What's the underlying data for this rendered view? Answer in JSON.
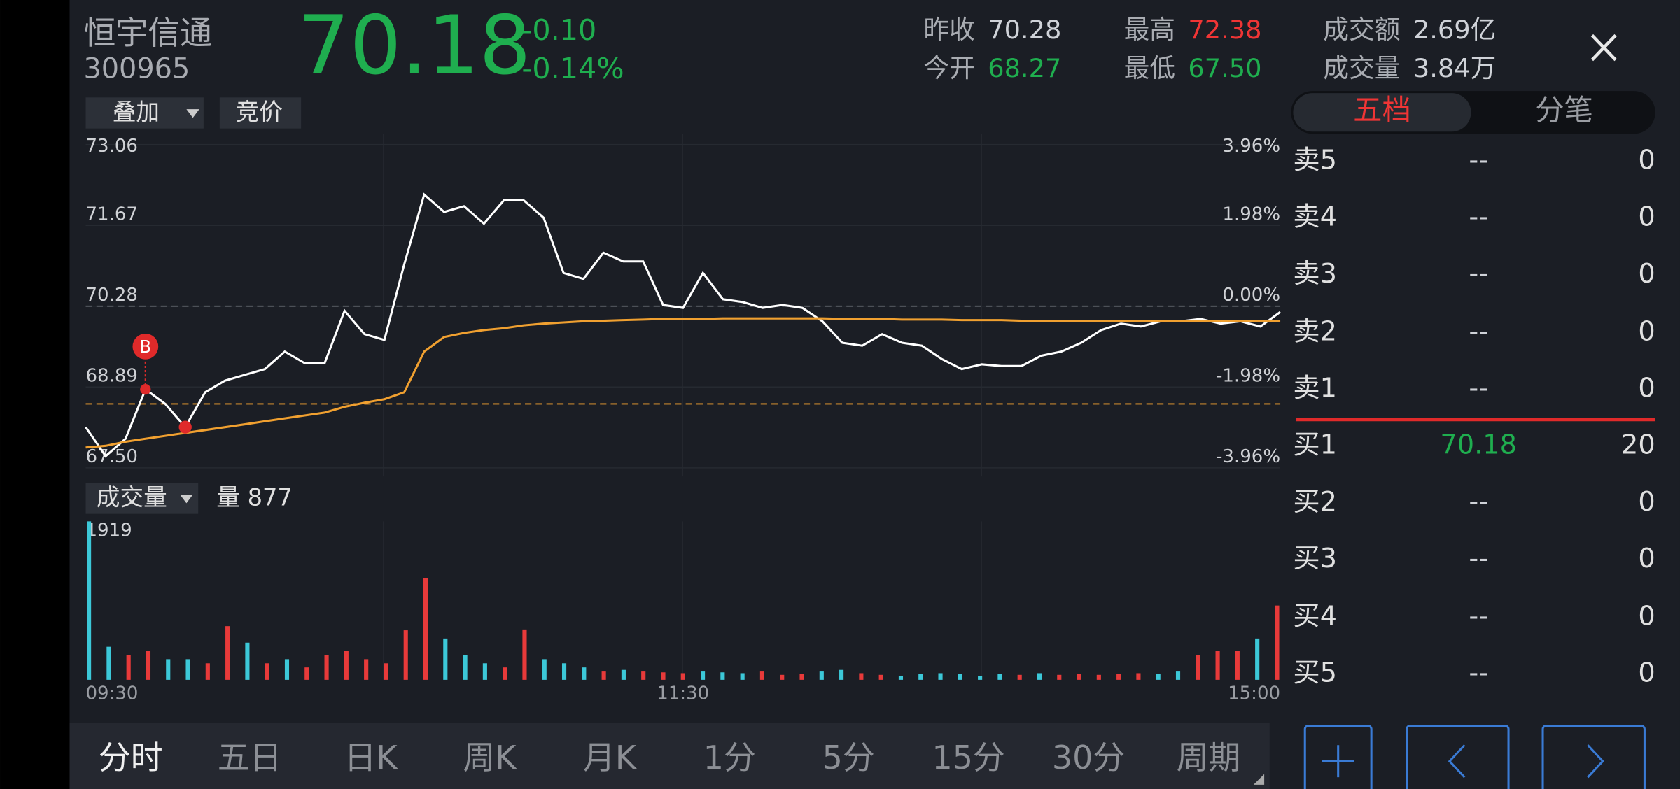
{
  "header": {
    "name": "恒宇信通",
    "code": "300965",
    "price": "70.18",
    "change": "-0.10",
    "change_pct": "-0.14%",
    "stats": [
      {
        "label": "昨收",
        "value": "70.28",
        "color": "#cfd2d8"
      },
      {
        "label": "今开",
        "value": "68.27",
        "color": "#1fae4f"
      },
      {
        "label": "最高",
        "value": "72.38",
        "color": "#f03535"
      },
      {
        "label": "最低",
        "value": "67.50",
        "color": "#1fae4f"
      },
      {
        "label": "成交额",
        "value": "2.69亿",
        "color": "#cfd2d8"
      },
      {
        "label": "成交量",
        "value": "3.84万",
        "color": "#cfd2d8"
      }
    ]
  },
  "toolbar": [
    "叠加",
    "竞价"
  ],
  "chart_data": [
    {
      "type": "line",
      "ylim": [
        67.5,
        73.06
      ],
      "yticks": [
        73.06,
        71.67,
        70.28,
        68.89,
        {
          "value": 67.5,
          "label": "67.50"
        }
      ],
      "y2lim": [
        -3.96,
        3.96
      ],
      "y2ticks": [
        {
          "value": 3.96,
          "label": "3.96%"
        },
        {
          "value": 1.98,
          "label": "1.98%"
        },
        {
          "value": 0,
          "label": "0.00%"
        },
        {
          "value": -1.98,
          "label": "-1.98%"
        },
        {
          "value": -3.96,
          "label": "-3.96%"
        }
      ],
      "ref_lines": [
        {
          "value": 70.28,
          "color": "#6a6e76"
        },
        {
          "value": 68.6,
          "color": "#f0a030"
        }
      ],
      "markers": [
        {
          "label": "B",
          "point": 3
        },
        {
          "point": 5
        }
      ],
      "series": [
        {
          "color": "#ffffff",
          "values": [
            68.2,
            67.7,
            68.0,
            68.85,
            68.6,
            68.2,
            68.8,
            69.0,
            69.1,
            69.2,
            69.5,
            69.3,
            69.3,
            70.2,
            69.8,
            69.7,
            71.0,
            72.2,
            71.9,
            72.0,
            71.7,
            72.1,
            72.1,
            71.8,
            70.85,
            70.75,
            71.2,
            71.05,
            71.05,
            70.3,
            70.25,
            70.85,
            70.4,
            70.35,
            70.25,
            70.3,
            70.25,
            70.02,
            69.65,
            69.6,
            69.8,
            69.65,
            69.6,
            69.37,
            69.2,
            69.28,
            69.25,
            69.25,
            69.43,
            69.5,
            69.65,
            69.87,
            69.98,
            69.93,
            70.02,
            70.02,
            70.06,
            69.98,
            70.02,
            69.93,
            70.18
          ]
        },
        {
          "color": "#f0a030",
          "values": [
            67.85,
            67.88,
            67.95,
            68.0,
            68.05,
            68.1,
            68.15,
            68.2,
            68.25,
            68.3,
            68.35,
            68.4,
            68.45,
            68.55,
            68.62,
            68.68,
            68.8,
            69.5,
            69.75,
            69.82,
            69.87,
            69.9,
            69.95,
            69.98,
            70.0,
            70.02,
            70.03,
            70.04,
            70.05,
            70.06,
            70.06,
            70.06,
            70.07,
            70.07,
            70.07,
            70.07,
            70.07,
            70.07,
            70.06,
            70.06,
            70.06,
            70.05,
            70.05,
            70.05,
            70.04,
            70.04,
            70.04,
            70.03,
            70.03,
            70.03,
            70.03,
            70.03,
            70.03,
            70.02,
            70.02,
            70.02,
            70.02,
            70.02,
            70.02,
            70.02,
            70.02
          ]
        }
      ]
    },
    {
      "type": "bar",
      "title": "成交量",
      "volume_label": "量 877",
      "ylim": [
        0,
        1919
      ],
      "yticks": [
        1919
      ],
      "time_labels": [
        "09:30",
        "11:30",
        "15:00"
      ],
      "values": [
        1919,
        400,
        300,
        350,
        250,
        250,
        200,
        650,
        450,
        200,
        250,
        150,
        300,
        350,
        250,
        200,
        600,
        1230,
        500,
        300,
        200,
        150,
        610,
        250,
        200,
        150,
        100,
        120,
        100,
        90,
        80,
        100,
        90,
        80,
        100,
        60,
        70,
        100,
        120,
        80,
        60,
        50,
        70,
        80,
        70,
        50,
        70,
        60,
        80,
        60,
        70,
        60,
        70,
        80,
        70,
        100,
        300,
        350,
        350,
        500,
        900
      ],
      "colors": [
        "#3cc8d8",
        "#3cc8d8",
        "#e83a3a",
        "#e83a3a",
        "#3cc8d8",
        "#3cc8d8",
        "#e83a3a",
        "#e83a3a",
        "#3cc8d8",
        "#e83a3a",
        "#3cc8d8",
        "#e83a3a",
        "#e83a3a",
        "#e83a3a",
        "#e83a3a",
        "#e83a3a",
        "#e83a3a",
        "#e83a3a",
        "#3cc8d8",
        "#3cc8d8",
        "#3cc8d8",
        "#e83a3a",
        "#e83a3a",
        "#3cc8d8",
        "#3cc8d8",
        "#3cc8d8",
        "#e83a3a",
        "#3cc8d8",
        "#e83a3a",
        "#e83a3a",
        "#e83a3a",
        "#3cc8d8",
        "#3cc8d8",
        "#3cc8d8",
        "#e83a3a",
        "#e83a3a",
        "#e83a3a",
        "#3cc8d8",
        "#3cc8d8",
        "#e83a3a",
        "#e83a3a",
        "#3cc8d8",
        "#3cc8d8",
        "#3cc8d8",
        "#3cc8d8",
        "#3cc8d8",
        "#3cc8d8",
        "#e83a3a",
        "#3cc8d8",
        "#e83a3a",
        "#e83a3a",
        "#e83a3a",
        "#e83a3a",
        "#e83a3a",
        "#3cc8d8",
        "#3cc8d8",
        "#e83a3a",
        "#e83a3a",
        "#e83a3a",
        "#3cc8d8",
        "#e83a3a"
      ]
    }
  ],
  "order_book": {
    "tabs": [
      "五档",
      "分笔"
    ],
    "asks": [
      {
        "label": "卖5",
        "price": "--",
        "qty": "0"
      },
      {
        "label": "卖4",
        "price": "--",
        "qty": "0"
      },
      {
        "label": "卖3",
        "price": "--",
        "qty": "0"
      },
      {
        "label": "卖2",
        "price": "--",
        "qty": "0"
      },
      {
        "label": "卖1",
        "price": "--",
        "qty": "0"
      }
    ],
    "bids": [
      {
        "label": "买1",
        "price": "70.18",
        "qty": "20"
      },
      {
        "label": "买2",
        "price": "--",
        "qty": "0"
      },
      {
        "label": "买3",
        "price": "--",
        "qty": "0"
      },
      {
        "label": "买4",
        "price": "--",
        "qty": "0"
      },
      {
        "label": "买5",
        "price": "--",
        "qty": "0"
      }
    ]
  },
  "periods": [
    "分时",
    "五日",
    "日K",
    "周K",
    "月K",
    "1分",
    "5分",
    "15分",
    "30分",
    "周期"
  ]
}
